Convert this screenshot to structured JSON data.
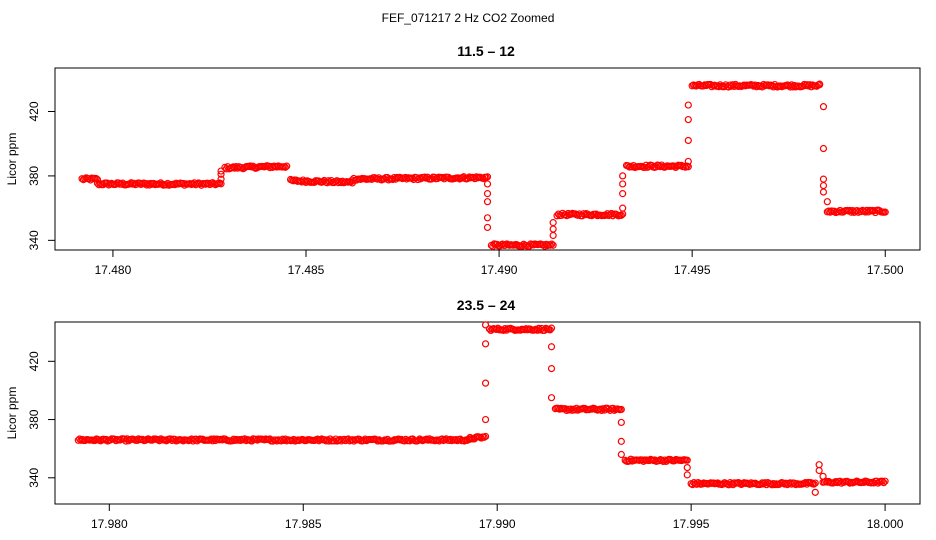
{
  "figure_title": "FEF_071217  2 Hz CO2 Zoomed",
  "colors": {
    "points": "#ff0000",
    "axes": "#000000",
    "background": "#ffffff"
  },
  "chart_data": [
    {
      "type": "scatter",
      "title": "11.5 – 12",
      "xlabel": "",
      "ylabel": "Licor ppm",
      "xlim": [
        17.4785,
        17.5009
      ],
      "ylim": [
        334,
        447
      ],
      "x_ticks": [
        17.48,
        17.485,
        17.49,
        17.495,
        17.5
      ],
      "x_tick_labels": [
        "17.480",
        "17.485",
        "17.490",
        "17.495",
        "17.500"
      ],
      "y_ticks": [
        340,
        380,
        420
      ],
      "y_tick_labels": [
        "340",
        "380",
        "420"
      ],
      "grid": false,
      "legend": "none",
      "series_segments": [
        {
          "x_start": 17.4792,
          "x_end": 17.4796,
          "y_start": 378,
          "y_end": 378
        },
        {
          "x_start": 17.4796,
          "x_end": 17.4828,
          "y_start": 375,
          "y_end": 375
        },
        {
          "x_start": 17.4829,
          "x_end": 17.4845,
          "y_start": 385,
          "y_end": 386
        },
        {
          "x_start": 17.4846,
          "x_end": 17.4862,
          "y_start": 377,
          "y_end": 376
        },
        {
          "x_start": 17.4862,
          "x_end": 17.4897,
          "y_start": 378,
          "y_end": 379
        },
        {
          "x_start": 17.4898,
          "x_end": 17.4914,
          "y_start": 337,
          "y_end": 337
        },
        {
          "x_start": 17.4915,
          "x_end": 17.4932,
          "y_start": 356,
          "y_end": 356
        },
        {
          "x_start": 17.4933,
          "x_end": 17.4949,
          "y_start": 386,
          "y_end": 386
        },
        {
          "x_start": 17.495,
          "x_end": 17.4983,
          "y_start": 436,
          "y_end": 436
        },
        {
          "x_start": 17.4985,
          "x_end": 17.5,
          "y_start": 358,
          "y_end": 358
        }
      ],
      "transition_points": [
        [
          17.4828,
          378
        ],
        [
          17.4828,
          381
        ],
        [
          17.4828,
          383
        ],
        [
          17.4897,
          375
        ],
        [
          17.4897,
          369
        ],
        [
          17.4897,
          364
        ],
        [
          17.4897,
          354
        ],
        [
          17.4897,
          348
        ],
        [
          17.4914,
          343
        ],
        [
          17.4914,
          347
        ],
        [
          17.4914,
          351
        ],
        [
          17.4932,
          360
        ],
        [
          17.4932,
          369
        ],
        [
          17.4932,
          375
        ],
        [
          17.4932,
          380
        ],
        [
          17.4949,
          389
        ],
        [
          17.4949,
          402
        ],
        [
          17.4949,
          415
        ],
        [
          17.4949,
          424
        ],
        [
          17.4983,
          437
        ],
        [
          17.4984,
          423
        ],
        [
          17.4984,
          397
        ],
        [
          17.4984,
          378
        ],
        [
          17.4984,
          374
        ],
        [
          17.4984,
          370
        ],
        [
          17.4985,
          364
        ]
      ]
    },
    {
      "type": "scatter",
      "title": "23.5 – 24",
      "xlabel": "",
      "ylabel": "Licor ppm",
      "xlim": [
        17.9786,
        18.0009
      ],
      "ylim": [
        322,
        447
      ],
      "x_ticks": [
        17.98,
        17.985,
        17.99,
        17.995,
        18.0
      ],
      "x_tick_labels": [
        "17.980",
        "17.985",
        "17.990",
        "17.995",
        "18.000"
      ],
      "y_ticks": [
        340,
        380,
        420
      ],
      "y_tick_labels": [
        "340",
        "380",
        "420"
      ],
      "grid": false,
      "legend": "none",
      "series_segments": [
        {
          "x_start": 17.9792,
          "x_end": 17.9893,
          "y_start": 366,
          "y_end": 366
        },
        {
          "x_start": 17.9893,
          "x_end": 17.9897,
          "y_start": 367,
          "y_end": 368
        },
        {
          "x_start": 17.9898,
          "x_end": 17.9914,
          "y_start": 442,
          "y_end": 442
        },
        {
          "x_start": 17.9915,
          "x_end": 17.9932,
          "y_start": 387,
          "y_end": 387
        },
        {
          "x_start": 17.9933,
          "x_end": 17.9949,
          "y_start": 352,
          "y_end": 352
        },
        {
          "x_start": 17.995,
          "x_end": 17.9982,
          "y_start": 336,
          "y_end": 336
        },
        {
          "x_start": 17.9984,
          "x_end": 18.0,
          "y_start": 337,
          "y_end": 337
        }
      ],
      "transition_points": [
        [
          17.9897,
          380
        ],
        [
          17.9897,
          405
        ],
        [
          17.9897,
          432
        ],
        [
          17.9897,
          445
        ],
        [
          17.9914,
          430
        ],
        [
          17.9914,
          415
        ],
        [
          17.9914,
          395
        ],
        [
          17.9932,
          378
        ],
        [
          17.9932,
          365
        ],
        [
          17.9932,
          356
        ],
        [
          17.9949,
          347
        ],
        [
          17.9949,
          342
        ],
        [
          17.9982,
          330
        ],
        [
          17.9983,
          349
        ],
        [
          17.9983,
          345
        ],
        [
          17.9984,
          341
        ]
      ]
    }
  ]
}
